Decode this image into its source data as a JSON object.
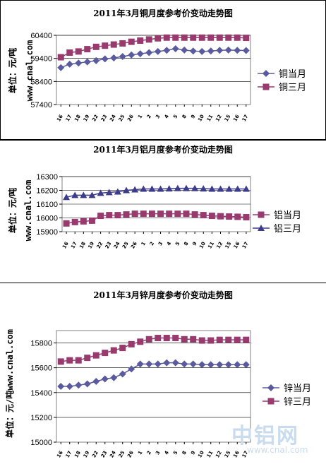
{
  "chart_data": [
    {
      "type": "line",
      "title": "2011年3月铜月度参考价变动走势图",
      "ylabel_line1": "单位：元/吨",
      "ylabel_line2": "www.cnal.com",
      "categories": [
        "16",
        "17",
        "18",
        "19",
        "22",
        "23",
        "24",
        "25",
        "26",
        "1",
        "2",
        "3",
        "4",
        "5",
        "8",
        "9",
        "10",
        "11",
        "12",
        "15",
        "16",
        "17"
      ],
      "yticks": [
        57400,
        58400,
        59400,
        60400
      ],
      "ylim": [
        57400,
        60400
      ],
      "series": [
        {
          "name": "铜当月",
          "marker": "diamond",
          "color": "#5a5a9e",
          "values": [
            59000,
            59150,
            59200,
            59250,
            59300,
            59380,
            59420,
            59480,
            59550,
            59600,
            59650,
            59700,
            59750,
            59820,
            59760,
            59720,
            59700,
            59720,
            59750,
            59760,
            59750,
            59740
          ]
        },
        {
          "name": "铜三月",
          "marker": "square",
          "color": "#983a6e",
          "values": [
            59450,
            59650,
            59700,
            59800,
            59900,
            59950,
            60000,
            60050,
            60120,
            60170,
            60220,
            60270,
            60300,
            60300,
            60300,
            60300,
            60300,
            60300,
            60300,
            60300,
            60300,
            60290
          ]
        }
      ],
      "legend": "right"
    },
    {
      "type": "line",
      "title": "2011年3月铝月度参考价变动走势图",
      "ylabel_line1": "单位：元/吨",
      "ylabel_line2": "www.cnal.com",
      "categories": [
        "16",
        "17",
        "18",
        "19",
        "22",
        "23",
        "24",
        "25",
        "26",
        "1",
        "2",
        "3",
        "4",
        "5",
        "8",
        "9",
        "10",
        "11",
        "12",
        "15",
        "16",
        "17"
      ],
      "yticks": [
        15900,
        16000,
        16100,
        16200,
        16300
      ],
      "ylim": [
        15900,
        16300
      ],
      "series": [
        {
          "name": "铝当月",
          "marker": "square",
          "color": "#983a6e",
          "values": [
            15960,
            15970,
            15975,
            15980,
            16015,
            16020,
            16020,
            16025,
            16030,
            16030,
            16030,
            16030,
            16030,
            16030,
            16030,
            16025,
            16020,
            16015,
            16012,
            16010,
            16008,
            16005
          ]
        },
        {
          "name": "铝三月",
          "marker": "triangle",
          "color": "#3c3c8c",
          "values": [
            16150,
            16165,
            16165,
            16165,
            16180,
            16185,
            16190,
            16200,
            16205,
            16210,
            16210,
            16210,
            16212,
            16215,
            16215,
            16215,
            16212,
            16210,
            16210,
            16210,
            16210,
            16210
          ]
        }
      ],
      "legend": "right"
    },
    {
      "type": "line",
      "title": "2011年3月锌月度参考价变动走势图",
      "ylabel": "单位：元/吨www.cnal.com",
      "categories": [
        "16",
        "17",
        "18",
        "19",
        "22",
        "23",
        "24",
        "25",
        "26",
        "1",
        "2",
        "3",
        "4",
        "5",
        "8",
        "9",
        "10",
        "11",
        "12",
        "15",
        "16",
        "17"
      ],
      "yticks": [
        15000,
        15200,
        15400,
        15600,
        15800
      ],
      "ylim": [
        15000,
        15900
      ],
      "series": [
        {
          "name": "锌当月",
          "marker": "diamond",
          "color": "#5a5a9e",
          "values": [
            15450,
            15450,
            15460,
            15470,
            15490,
            15510,
            15520,
            15550,
            15590,
            15630,
            15630,
            15630,
            15640,
            15640,
            15630,
            15630,
            15625,
            15625,
            15625,
            15625,
            15625,
            15625
          ]
        },
        {
          "name": "锌三月",
          "marker": "square",
          "color": "#983a6e",
          "values": [
            15650,
            15660,
            15660,
            15680,
            15700,
            15720,
            15740,
            15760,
            15790,
            15810,
            15830,
            15840,
            15840,
            15840,
            15830,
            15830,
            15820,
            15820,
            15825,
            15825,
            15825,
            15825
          ]
        }
      ],
      "legend": "right"
    }
  ],
  "watermark": {
    "text": "中铝网",
    "url": "www.cnal.com"
  }
}
